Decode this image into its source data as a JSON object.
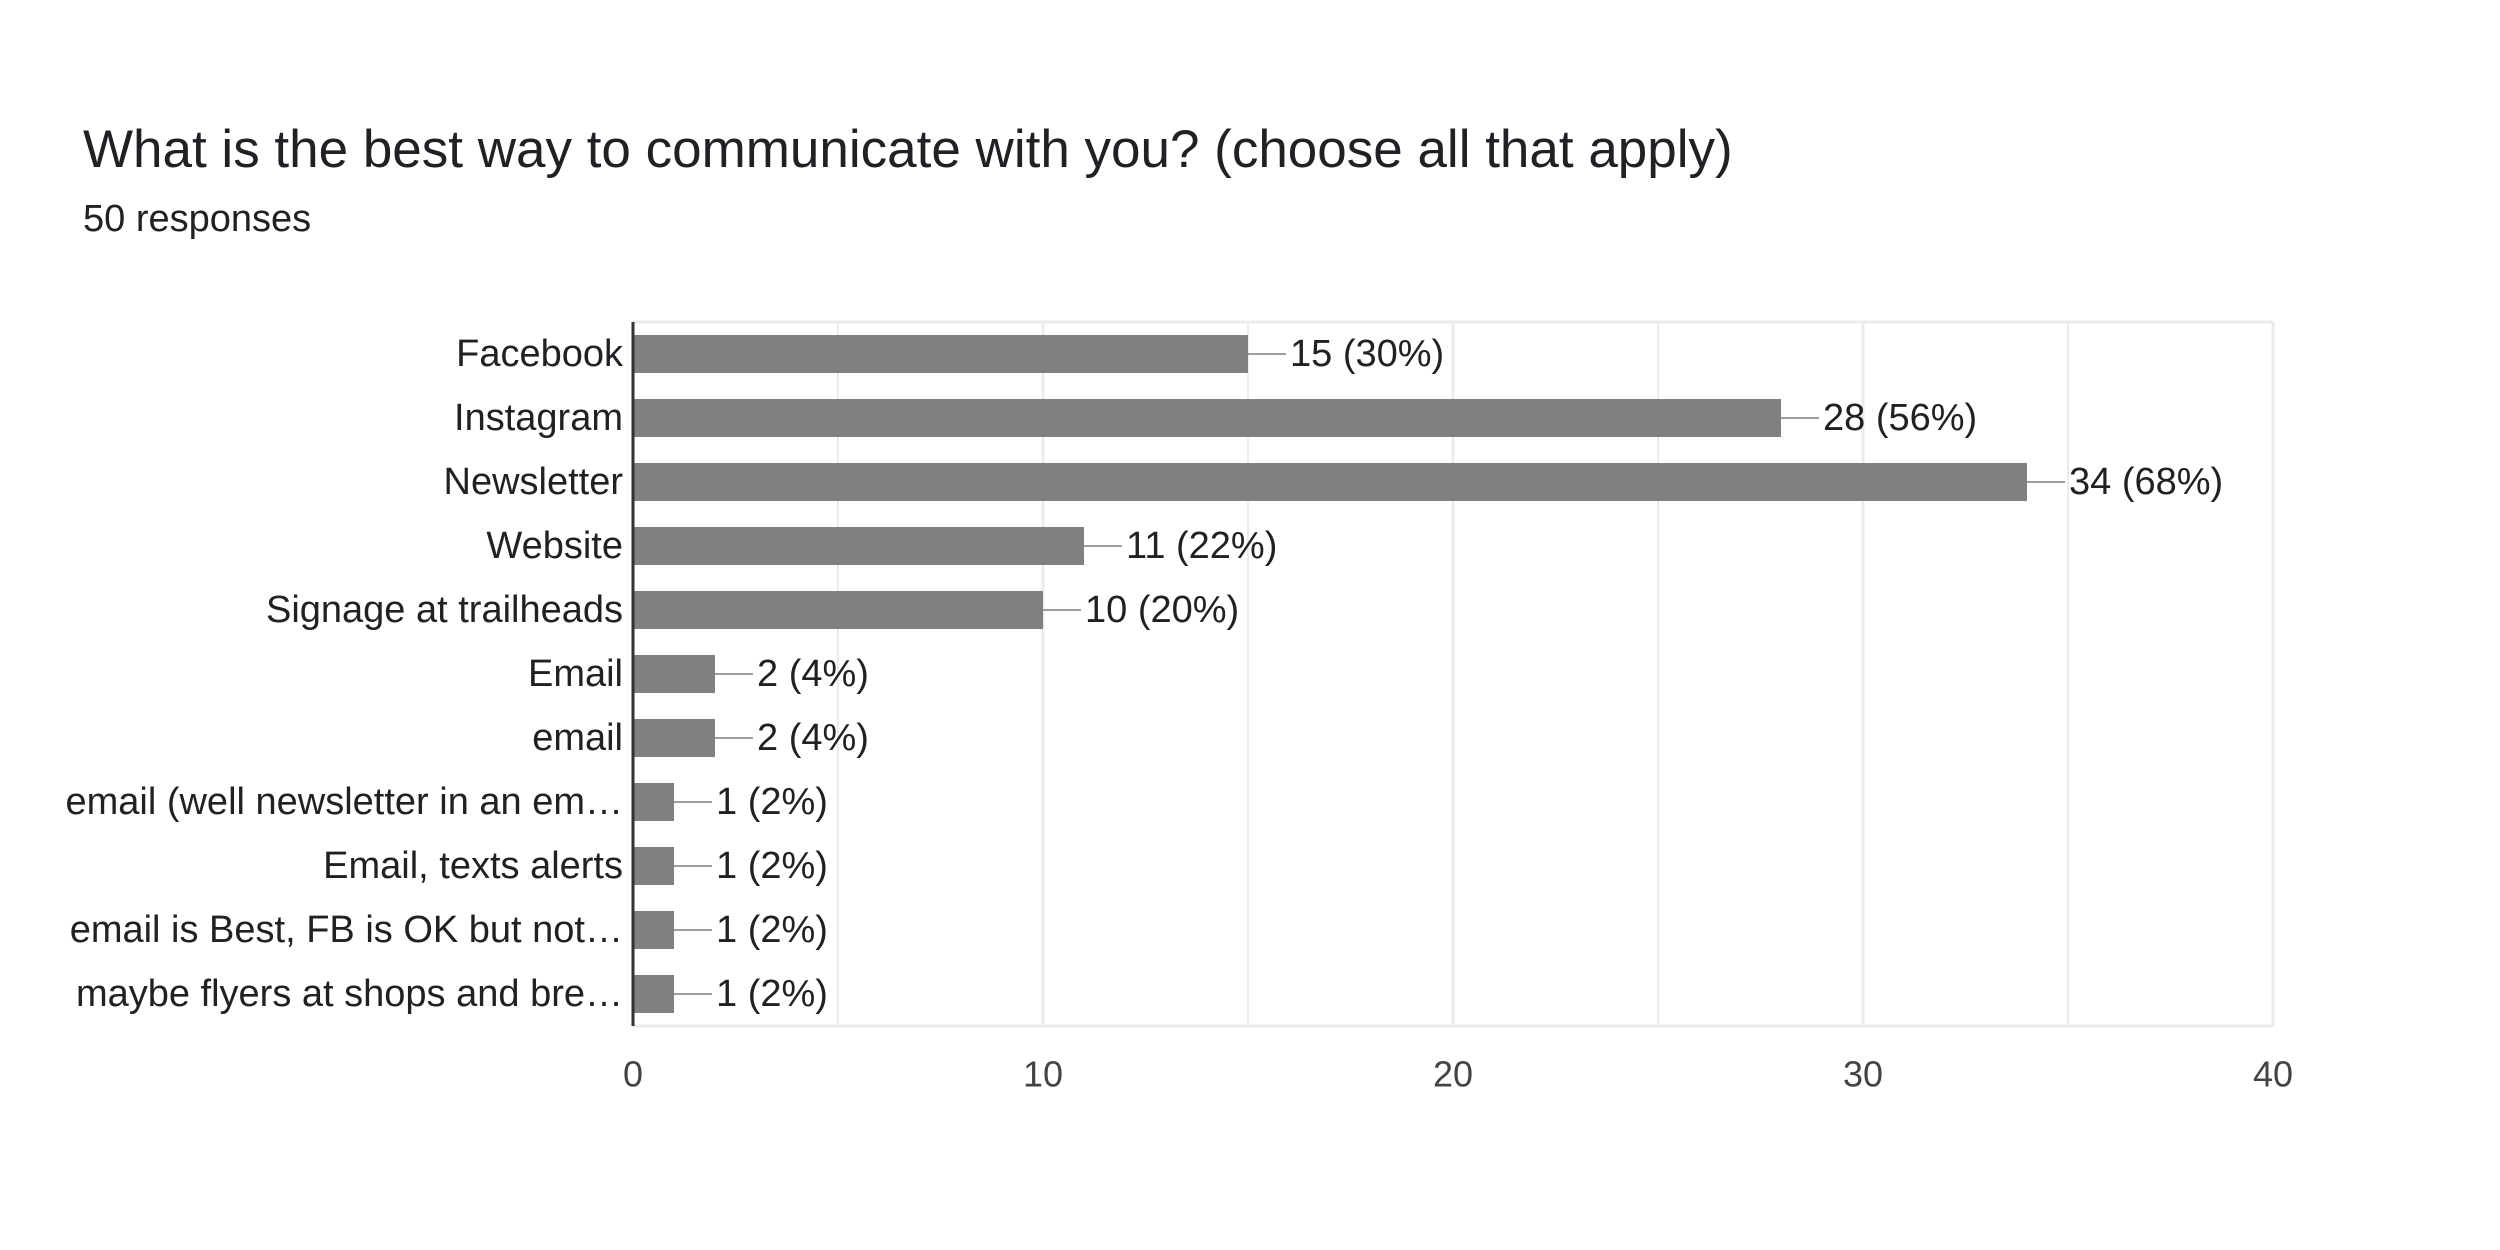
{
  "header": {
    "title": "What is the best way to communicate with you? (choose all that apply)",
    "subtitle": "50 responses"
  },
  "colors": {
    "bar": "#808080",
    "grid": "#ebebeb",
    "axis": "#333333",
    "leader": "#9e9e9e"
  },
  "chart_data": {
    "type": "bar",
    "orientation": "horizontal",
    "title": "What is the best way to communicate with you? (choose all that apply)",
    "subtitle": "50 responses",
    "categories": [
      "Facebook",
      "Instagram",
      "Newsletter",
      "Website",
      "Signage at trailheads",
      "Email",
      "email",
      "email (well newsletter in an em…",
      "Email, texts alerts",
      "email is Best, FB is OK but not…",
      "maybe flyers at shops and bre…"
    ],
    "values": [
      15,
      28,
      34,
      11,
      10,
      2,
      2,
      1,
      1,
      1,
      1
    ],
    "data_labels": [
      "15 (30%)",
      "28 (56%)",
      "34 (68%)",
      "11 (22%)",
      "10 (20%)",
      "2 (4%)",
      "2 (4%)",
      "1 (2%)",
      "1 (2%)",
      "1 (2%)",
      "1 (2%)"
    ],
    "xlim": [
      0,
      40
    ],
    "xticks": [
      0,
      10,
      20,
      30,
      40
    ],
    "xtick_labels": [
      "0",
      "10",
      "20",
      "30",
      "40"
    ],
    "grid": true,
    "legend": "none"
  }
}
